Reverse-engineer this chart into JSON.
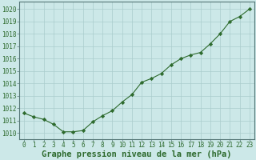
{
  "x": [
    0,
    1,
    2,
    3,
    4,
    5,
    6,
    7,
    8,
    9,
    10,
    11,
    12,
    13,
    14,
    15,
    16,
    17,
    18,
    19,
    20,
    21,
    22,
    23
  ],
  "y": [
    1011.6,
    1011.3,
    1011.1,
    1010.7,
    1010.1,
    1010.1,
    1010.2,
    1010.9,
    1011.4,
    1011.8,
    1012.5,
    1013.1,
    1014.1,
    1014.4,
    1014.8,
    1015.5,
    1016.0,
    1016.3,
    1016.5,
    1017.2,
    1018.0,
    1019.0,
    1019.4,
    1020.0
  ],
  "line_color": "#2d6a2d",
  "marker": "D",
  "marker_size": 2.2,
  "bg_color": "#cce8e8",
  "grid_color": "#aacccc",
  "xlabel": "Graphe pression niveau de la mer (hPa)",
  "xlabel_fontsize": 7.5,
  "ylabel_ticks": [
    1010,
    1011,
    1012,
    1013,
    1014,
    1015,
    1016,
    1017,
    1018,
    1019,
    1020
  ],
  "ylim": [
    1009.5,
    1020.6
  ],
  "xlim": [
    -0.5,
    23.5
  ],
  "tick_fontsize": 5.5,
  "axis_label_color": "#2d6a2d"
}
